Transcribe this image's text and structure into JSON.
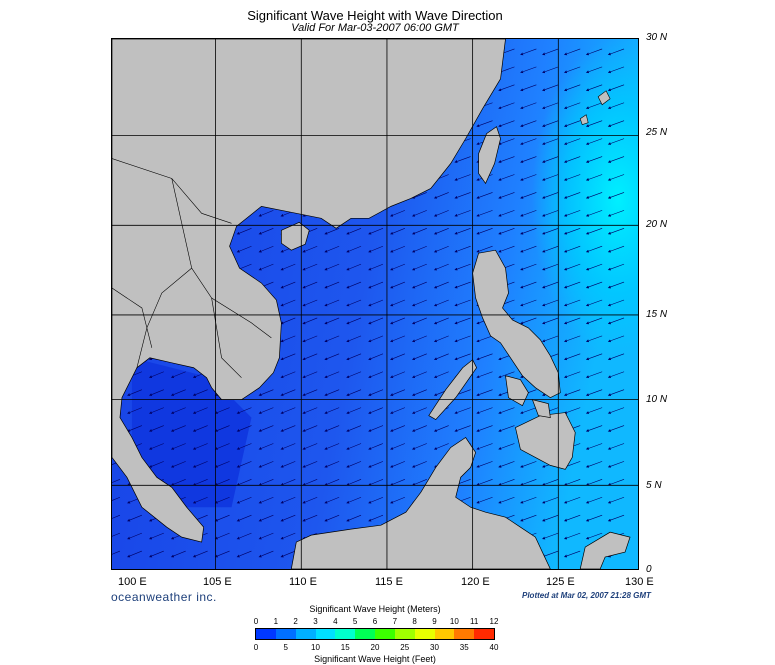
{
  "header": {
    "title": "Significant Wave Height with Wave Direction",
    "valid": "Valid For Mar-03-2007 06:00 GMT"
  },
  "axes": {
    "lat_labels": [
      "30 N",
      "25 N",
      "20 N",
      "15 N",
      "10 N",
      "5 N",
      "0"
    ],
    "lon_labels": [
      "100 E",
      "105 E",
      "110 E",
      "115 E",
      "120 E",
      "125 E",
      "130 E"
    ]
  },
  "footer": {
    "brand": "oceanweather inc.",
    "plotted": "Plotted at Mar 02, 2007 21:28 GMT"
  },
  "colorbar": {
    "meters_title": "Significant Wave Height (Meters)",
    "feet_title": "Significant Wave Height (Feet)",
    "meters_ticks": [
      "0",
      "1",
      "2",
      "3",
      "4",
      "5",
      "6",
      "7",
      "8",
      "9",
      "10",
      "11",
      "12"
    ],
    "feet_ticks": [
      "0",
      "5",
      "10",
      "15",
      "20",
      "25",
      "30",
      "35",
      "40"
    ],
    "colors": [
      "#0038ff",
      "#0070ff",
      "#00b0ff",
      "#00e0ff",
      "#00ffcc",
      "#00ff55",
      "#3cff00",
      "#a0ff00",
      "#e8ff00",
      "#ffc800",
      "#ff7a00",
      "#ff2a00"
    ]
  },
  "map_colors": {
    "land": "#c0c0c0",
    "ocean": "#1f55ea",
    "grid": "#000000",
    "arrow": "#000066"
  }
}
